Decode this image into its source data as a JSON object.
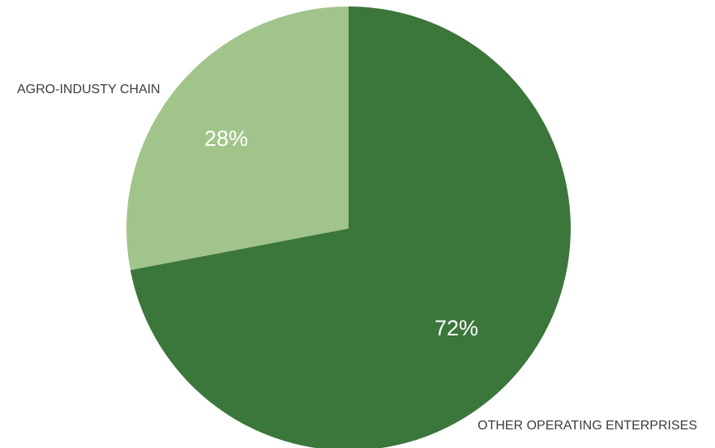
{
  "chart_data": {
    "type": "pie",
    "title": "",
    "slices": [
      {
        "label": "OTHER OPERATING ENTERPRISES",
        "value": 72,
        "display": "72%",
        "color": "#3b763b"
      },
      {
        "label": "AGRO-INDUSTY CHAIN",
        "value": 28,
        "display": "28%",
        "color": "#a1c48b"
      }
    ],
    "start": "12 o'clock",
    "direction": "clockwise"
  }
}
